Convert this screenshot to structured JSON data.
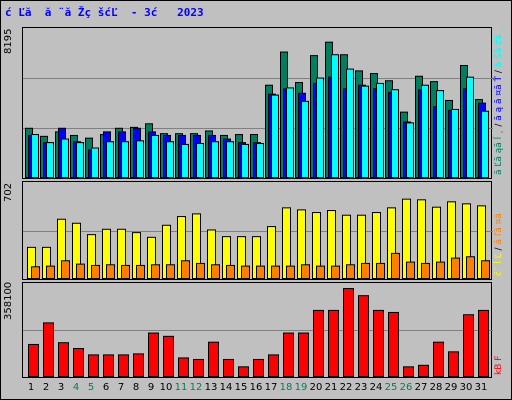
{
  "title": "ć Ľă  ă ¨ă Žç šćĽ  - 3ć   2023",
  "colors": {
    "background": "#c0c0c0",
    "hits": "#007f60",
    "files": "#0000ff",
    "pages": "#00ffff",
    "visits": "#ffff00",
    "sites": "#ff8000",
    "kbytes": "#ff0000",
    "weekend_label": "#007f60",
    "weekday_label": "#000000",
    "grid": "#808080"
  },
  "legends": {
    "hits_panel": [
      {
        "label": "ă Ľă ąă ĺ ˛",
        "color": "#007f60"
      },
      {
        "label": "/",
        "color": "#000000"
      },
      {
        "label": "ă ą ă ¤ă Ť",
        "color": "#0000ff"
      },
      {
        "label": "/",
        "color": "#000000"
      },
      {
        "label": "ă Śă źă ¸",
        "color": "#00ffff"
      }
    ],
    "visits_panel": [
      {
        "label": "č¨ ĺ Ľ",
        "color": "#ffff00"
      },
      {
        "label": "/",
        "color": "#000000"
      },
      {
        "label": "ă ľă ¤ă",
        "color": "#ff8000"
      }
    ],
    "bytes_panel": [
      {
        "label": "kB F",
        "color": "#ff0000"
      }
    ]
  },
  "chart_data": [
    {
      "type": "bar",
      "name": "hits-files-pages",
      "max_label": "8195",
      "ylim": [
        0,
        8195
      ],
      "categories": [
        "1",
        "2",
        "3",
        "4",
        "5",
        "6",
        "7",
        "8",
        "9",
        "10",
        "11",
        "12",
        "13",
        "14",
        "15",
        "16",
        "17",
        "18",
        "19",
        "20",
        "21",
        "22",
        "23",
        "24",
        "25",
        "26",
        "27",
        "28",
        "29",
        "30",
        "31"
      ],
      "weekend_days": [
        "4",
        "5",
        "11",
        "12",
        "18",
        "19",
        "25",
        "26"
      ],
      "series": [
        {
          "values": [
            2800,
            2350,
            2600,
            2400,
            2250,
            2450,
            2800,
            2850,
            3050,
            2500,
            2500,
            2500,
            2650,
            2400,
            2450,
            2450,
            5200,
            7050,
            5350,
            6850,
            7600,
            6900,
            6000,
            5850,
            5450,
            3700,
            5700,
            5400,
            4350,
            6300,
            4400
          ]
        },
        {
          "values": [
            2400,
            2000,
            2800,
            2050,
            1600,
            2600,
            2600,
            2800,
            2600,
            2400,
            2400,
            2400,
            2400,
            2200,
            2000,
            2000,
            4700,
            5000,
            4750,
            5300,
            5650,
            5000,
            5200,
            5000,
            4800,
            3150,
            4950,
            4000,
            3800,
            5000,
            4200
          ]
        },
        {
          "values": [
            2450,
            2000,
            2200,
            2000,
            1700,
            2050,
            2050,
            2100,
            2400,
            2050,
            1900,
            1950,
            2050,
            2050,
            1900,
            1950,
            4650,
            5050,
            4300,
            5600,
            6900,
            6100,
            5150,
            5300,
            4950,
            3100,
            5200,
            4900,
            3850,
            5650,
            3750
          ]
        }
      ]
    },
    {
      "type": "bar",
      "name": "visits-sites",
      "max_label": "702",
      "ylim": [
        0,
        702
      ],
      "series": [
        {
          "values": [
            240,
            240,
            450,
            420,
            335,
            375,
            375,
            350,
            315,
            405,
            470,
            490,
            370,
            320,
            320,
            320,
            395,
            535,
            520,
            500,
            515,
            480,
            480,
            500,
            535,
            600,
            595,
            540,
            580,
            565,
            550
          ]
        },
        {
          "values": [
            95,
            100,
            140,
            115,
            105,
            110,
            105,
            105,
            110,
            110,
            140,
            120,
            110,
            105,
            100,
            100,
            100,
            100,
            110,
            100,
            100,
            110,
            120,
            120,
            195,
            130,
            120,
            130,
            160,
            170,
            140
          ]
        }
      ]
    },
    {
      "type": "bar",
      "name": "kbytes",
      "max_label": "358100",
      "ylim": [
        0,
        358100
      ],
      "series": [
        {
          "values": [
            130000,
            215000,
            137000,
            114000,
            89000,
            89000,
            89000,
            93000,
            175000,
            162000,
            77000,
            71000,
            139000,
            71000,
            42000,
            71000,
            89000,
            175000,
            175000,
            264000,
            264000,
            350000,
            322000,
            264000,
            256000,
            42000,
            48000,
            139000,
            101000,
            247000,
            264000
          ]
        }
      ]
    }
  ]
}
